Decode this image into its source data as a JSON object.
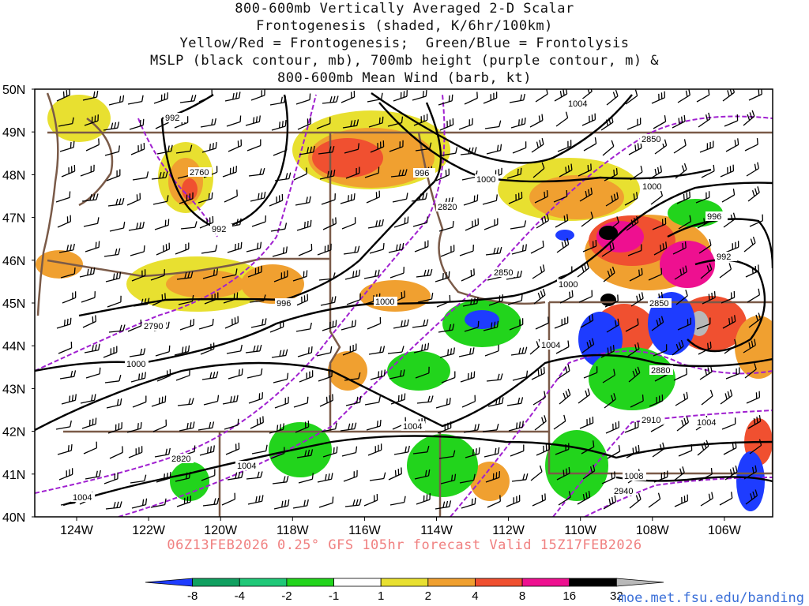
{
  "title": {
    "lines": [
      "800-600mb Vertically Averaged 2-D Scalar",
      "Frontogenesis (shaded, K/6hr/100km)",
      "Yellow/Red = Frontogenesis;  Green/Blue = Frontolysis",
      "MSLP (black contour, mb), 700mb height (purple contour, m) &",
      "800-600mb Mean Wind (barb, kt)"
    ]
  },
  "map": {
    "lat_labels": [
      "50N",
      "49N",
      "48N",
      "47N",
      "46N",
      "45N",
      "44N",
      "43N",
      "42N",
      "41N",
      "40N"
    ],
    "lon_labels": [
      "124W",
      "122W",
      "120W",
      "118W",
      "116W",
      "114W",
      "112W",
      "110W",
      "108W",
      "106W"
    ],
    "mslp_labels": [
      "992",
      "992",
      "996",
      "996",
      "1000",
      "1000",
      "1000",
      "1000",
      "1004",
      "1004",
      "1004",
      "1004",
      "1004",
      "1004",
      "1008",
      "996",
      "992"
    ],
    "height_labels": [
      "2760",
      "2790",
      "2820",
      "2820",
      "2850",
      "2850",
      "2850",
      "2880",
      "2910",
      "2940"
    ],
    "colors": {
      "mslp": "#000000",
      "height": "#a020d0",
      "border": "#7a5a48",
      "barb": "#000000"
    }
  },
  "legend": {
    "ticks": [
      "-8",
      "-4",
      "-2",
      "-1",
      "1",
      "2",
      "4",
      "8",
      "16",
      "32"
    ],
    "colors": [
      "#1e3cff",
      "#10a060",
      "#20c878",
      "#22d41c",
      "#ffffff",
      "#e8e030",
      "#f0a030",
      "#f05030",
      "#ee1090",
      "#000000",
      "#b8b8b8"
    ]
  },
  "footer": "06Z13FEB2026 0.25° GFS 105hr forecast Valid 15Z17FEB2026",
  "credit": "moe.met.fsu.edu/banding"
}
